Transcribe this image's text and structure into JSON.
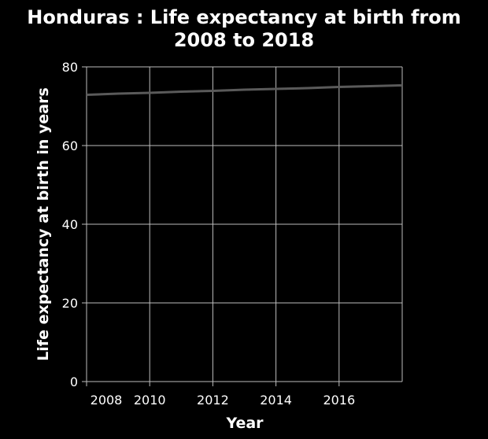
{
  "chart_data": {
    "type": "line",
    "title": "Honduras : Life expectancy at birth from 2008 to 2018",
    "title_lines": [
      "Honduras : Life expectancy at birth from",
      "2008 to 2018"
    ],
    "xlabel": "Year",
    "ylabel": "Life expectancy at birth in years",
    "xlim": [
      2008,
      2018
    ],
    "ylim": [
      0,
      80
    ],
    "x_ticks": [
      2008,
      2010,
      2012,
      2014,
      2016
    ],
    "y_ticks": [
      0,
      20,
      40,
      60,
      80
    ],
    "grid": true,
    "series": [
      {
        "x": [
          2008,
          2009,
          2010,
          2011,
          2012,
          2013,
          2014,
          2015,
          2016,
          2017,
          2018
        ],
        "y": [
          72.9,
          73.2,
          73.4,
          73.7,
          73.9,
          74.2,
          74.4,
          74.6,
          74.9,
          75.1,
          75.3
        ]
      }
    ],
    "colors": {
      "background": "#000000",
      "line": "#5a5a5a",
      "grid": "#bdbdbd",
      "text": "#ffffff"
    }
  }
}
